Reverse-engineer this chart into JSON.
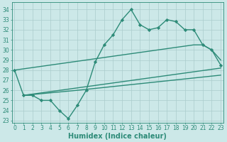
{
  "series": [
    {
      "x": [
        0,
        1,
        2,
        3,
        4,
        5,
        6,
        7,
        8,
        9,
        10,
        11,
        12,
        13,
        14,
        15,
        16,
        17,
        18,
        19,
        20,
        21,
        22,
        23
      ],
      "y": [
        28,
        25.5,
        25.5,
        25,
        25,
        24,
        23.2,
        24.5,
        26,
        28.8,
        30.5,
        31.5,
        33,
        34,
        32.5,
        32,
        32.2,
        33,
        32.8,
        32,
        32,
        30.5,
        30,
        28.5
      ],
      "color": "#2d8b78",
      "linewidth": 1.0,
      "marker": "D",
      "markersize": 2.2
    },
    {
      "x": [
        0,
        20,
        21,
        22,
        23
      ],
      "y": [
        28,
        30.5,
        30.5,
        30.0,
        29.0
      ],
      "color": "#2d8b78",
      "linewidth": 1.0,
      "marker": null,
      "markersize": 0
    },
    {
      "x": [
        1,
        23
      ],
      "y": [
        25.5,
        28.2
      ],
      "color": "#2d8b78",
      "linewidth": 1.0,
      "marker": null,
      "markersize": 0
    },
    {
      "x": [
        1,
        7,
        23
      ],
      "y": [
        25.5,
        26.0,
        27.5
      ],
      "color": "#2d8b78",
      "linewidth": 1.0,
      "marker": null,
      "markersize": 0
    }
  ],
  "xlim": [
    -0.3,
    23.3
  ],
  "ylim": [
    22.8,
    34.7
  ],
  "yticks": [
    23,
    24,
    25,
    26,
    27,
    28,
    29,
    30,
    31,
    32,
    33,
    34
  ],
  "xticks": [
    0,
    1,
    2,
    3,
    4,
    5,
    6,
    7,
    8,
    9,
    10,
    11,
    12,
    13,
    14,
    15,
    16,
    17,
    18,
    19,
    20,
    21,
    22,
    23
  ],
  "xlabel": "Humidex (Indice chaleur)",
  "bg_color": "#cce8e8",
  "grid_color": "#aacccc",
  "text_color": "#2d8b78",
  "spine_color": "#2d8b78",
  "tick_fontsize": 5.5,
  "xlabel_fontsize": 7.0
}
